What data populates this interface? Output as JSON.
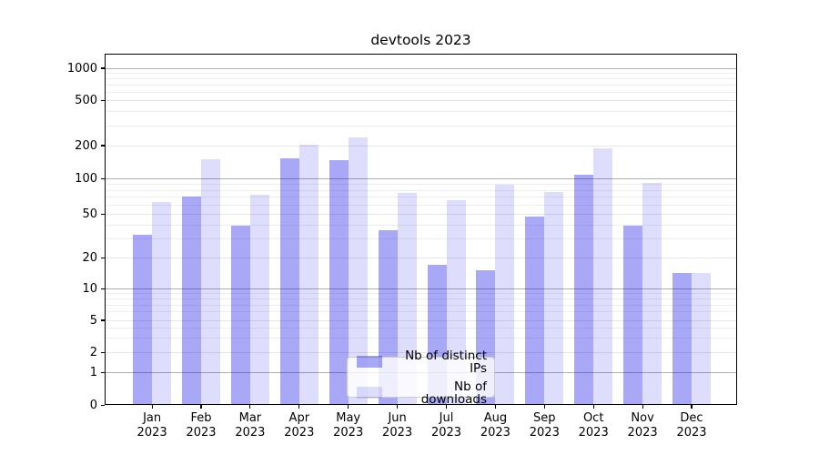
{
  "title": "devtools 2023",
  "colors": {
    "bar_distinct_ips": "rgba(0,0,230,0.34)",
    "bar_downloads": "rgba(0,0,230,0.13)",
    "bar_distinct_ips_hex_on_white": "#abstract",
    "grid_major": "#b0b0b0",
    "grid_mid": "#e6e6e6",
    "grid_minor": "#eeeeee",
    "spine": "#000000",
    "legend_border": "#cccccc",
    "text": "#000000"
  },
  "legend": {
    "items": [
      {
        "label": "Nb of distinct IPs",
        "color": "rgba(0,0,230,0.34)"
      },
      {
        "label": "Nb of downloads",
        "color": "rgba(0,0,230,0.13)"
      }
    ],
    "position": "lower center"
  },
  "chart_data": {
    "type": "bar",
    "title": "devtools 2023",
    "categories": [
      "Jan 2023",
      "Feb 2023",
      "Mar 2023",
      "Apr 2023",
      "May 2023",
      "Jun 2023",
      "Jul 2023",
      "Aug 2023",
      "Sep 2023",
      "Oct 2023",
      "Nov 2023",
      "Dec 2023"
    ],
    "month_labels": [
      "Jan",
      "Feb",
      "Mar",
      "Apr",
      "May",
      "Jun",
      "Jul",
      "Aug",
      "Sep",
      "Oct",
      "Nov",
      "Dec"
    ],
    "year_label": "2023",
    "series": [
      {
        "name": "Nb of distinct IPs",
        "values": [
          32,
          70,
          39,
          150,
          145,
          35,
          17,
          15,
          47,
          106,
          39,
          14
        ]
      },
      {
        "name": "Nb of downloads",
        "values": [
          62,
          148,
          72,
          200,
          230,
          75,
          65,
          88,
          76,
          186,
          90,
          14
        ]
      }
    ],
    "xlabel": "",
    "ylabel": "",
    "yscale": "symlog",
    "yticks": [
      0,
      1,
      2,
      5,
      10,
      20,
      50,
      100,
      200,
      500,
      1000
    ],
    "ylim": [
      0,
      1330
    ],
    "grid": true,
    "legend_position": "lower center"
  }
}
